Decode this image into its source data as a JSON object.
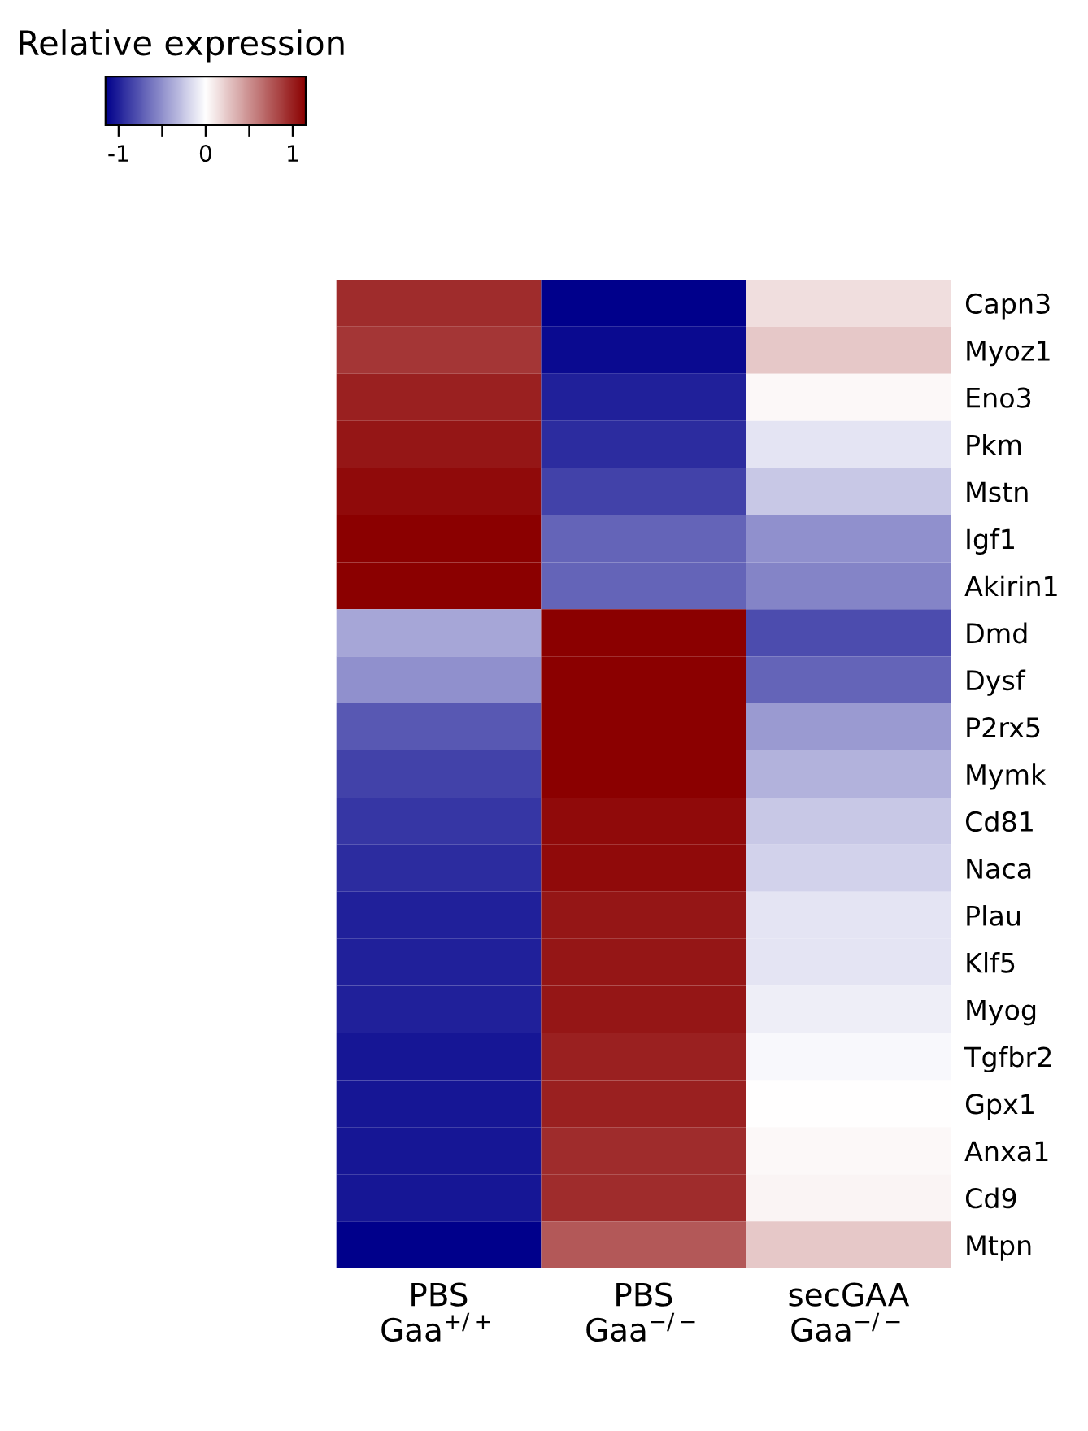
{
  "chart_data": {
    "type": "heatmap",
    "clabel": "Relative expression",
    "categories": [
      "PBS\nGaa$^{+/+}$",
      "PBS\nGaa$^{−/−}$",
      "secGAA\nGaa$^{−/−}$"
    ],
    "y_categories": [
      "Capn3",
      "Myoz1",
      "Eno3",
      "Pkm",
      "Mstn",
      "Igf1",
      "Akirin1",
      "Dmd",
      "Dysf",
      "P2rx5",
      "Mymk",
      "Cd81",
      "Naca",
      "Plau",
      "Klf5",
      "Myog",
      "Tgfbr2",
      "Gpx1",
      "Anxa1",
      "Cd9",
      "Mtpn"
    ],
    "cells": [
      [
        0.95,
        -1.15,
        0.15
      ],
      [
        0.9,
        -1.1,
        0.25
      ],
      [
        1.0,
        -1.0,
        0.03
      ],
      [
        1.05,
        -0.95,
        -0.12
      ],
      [
        1.1,
        -0.85,
        -0.25
      ],
      [
        1.15,
        -0.7,
        -0.5
      ],
      [
        1.15,
        -0.7,
        -0.55
      ],
      [
        -0.4,
        1.15,
        -0.8
      ],
      [
        -0.5,
        1.15,
        -0.7
      ],
      [
        -0.75,
        1.15,
        -0.45
      ],
      [
        -0.85,
        1.15,
        -0.35
      ],
      [
        -0.9,
        1.1,
        -0.25
      ],
      [
        -0.95,
        1.1,
        -0.2
      ],
      [
        -1.0,
        1.05,
        -0.12
      ],
      [
        -1.0,
        1.05,
        -0.12
      ],
      [
        -1.0,
        1.05,
        -0.08
      ],
      [
        -1.05,
        1.0,
        -0.03
      ],
      [
        -1.05,
        1.0,
        0.0
      ],
      [
        -1.05,
        0.95,
        0.03
      ],
      [
        -1.05,
        0.95,
        0.05
      ],
      [
        -1.15,
        0.75,
        0.25
      ]
    ],
    "colors": [
      "#00008b",
      "#ffffff",
      "#8b0000"
    ],
    "clim": [
      -1.15,
      1.15
    ],
    "cticks": [
      -1,
      {
        "value": -0.5,
        "label": null
      },
      0,
      {
        "value": 0.5,
        "label": null
      },
      1
    ]
  }
}
